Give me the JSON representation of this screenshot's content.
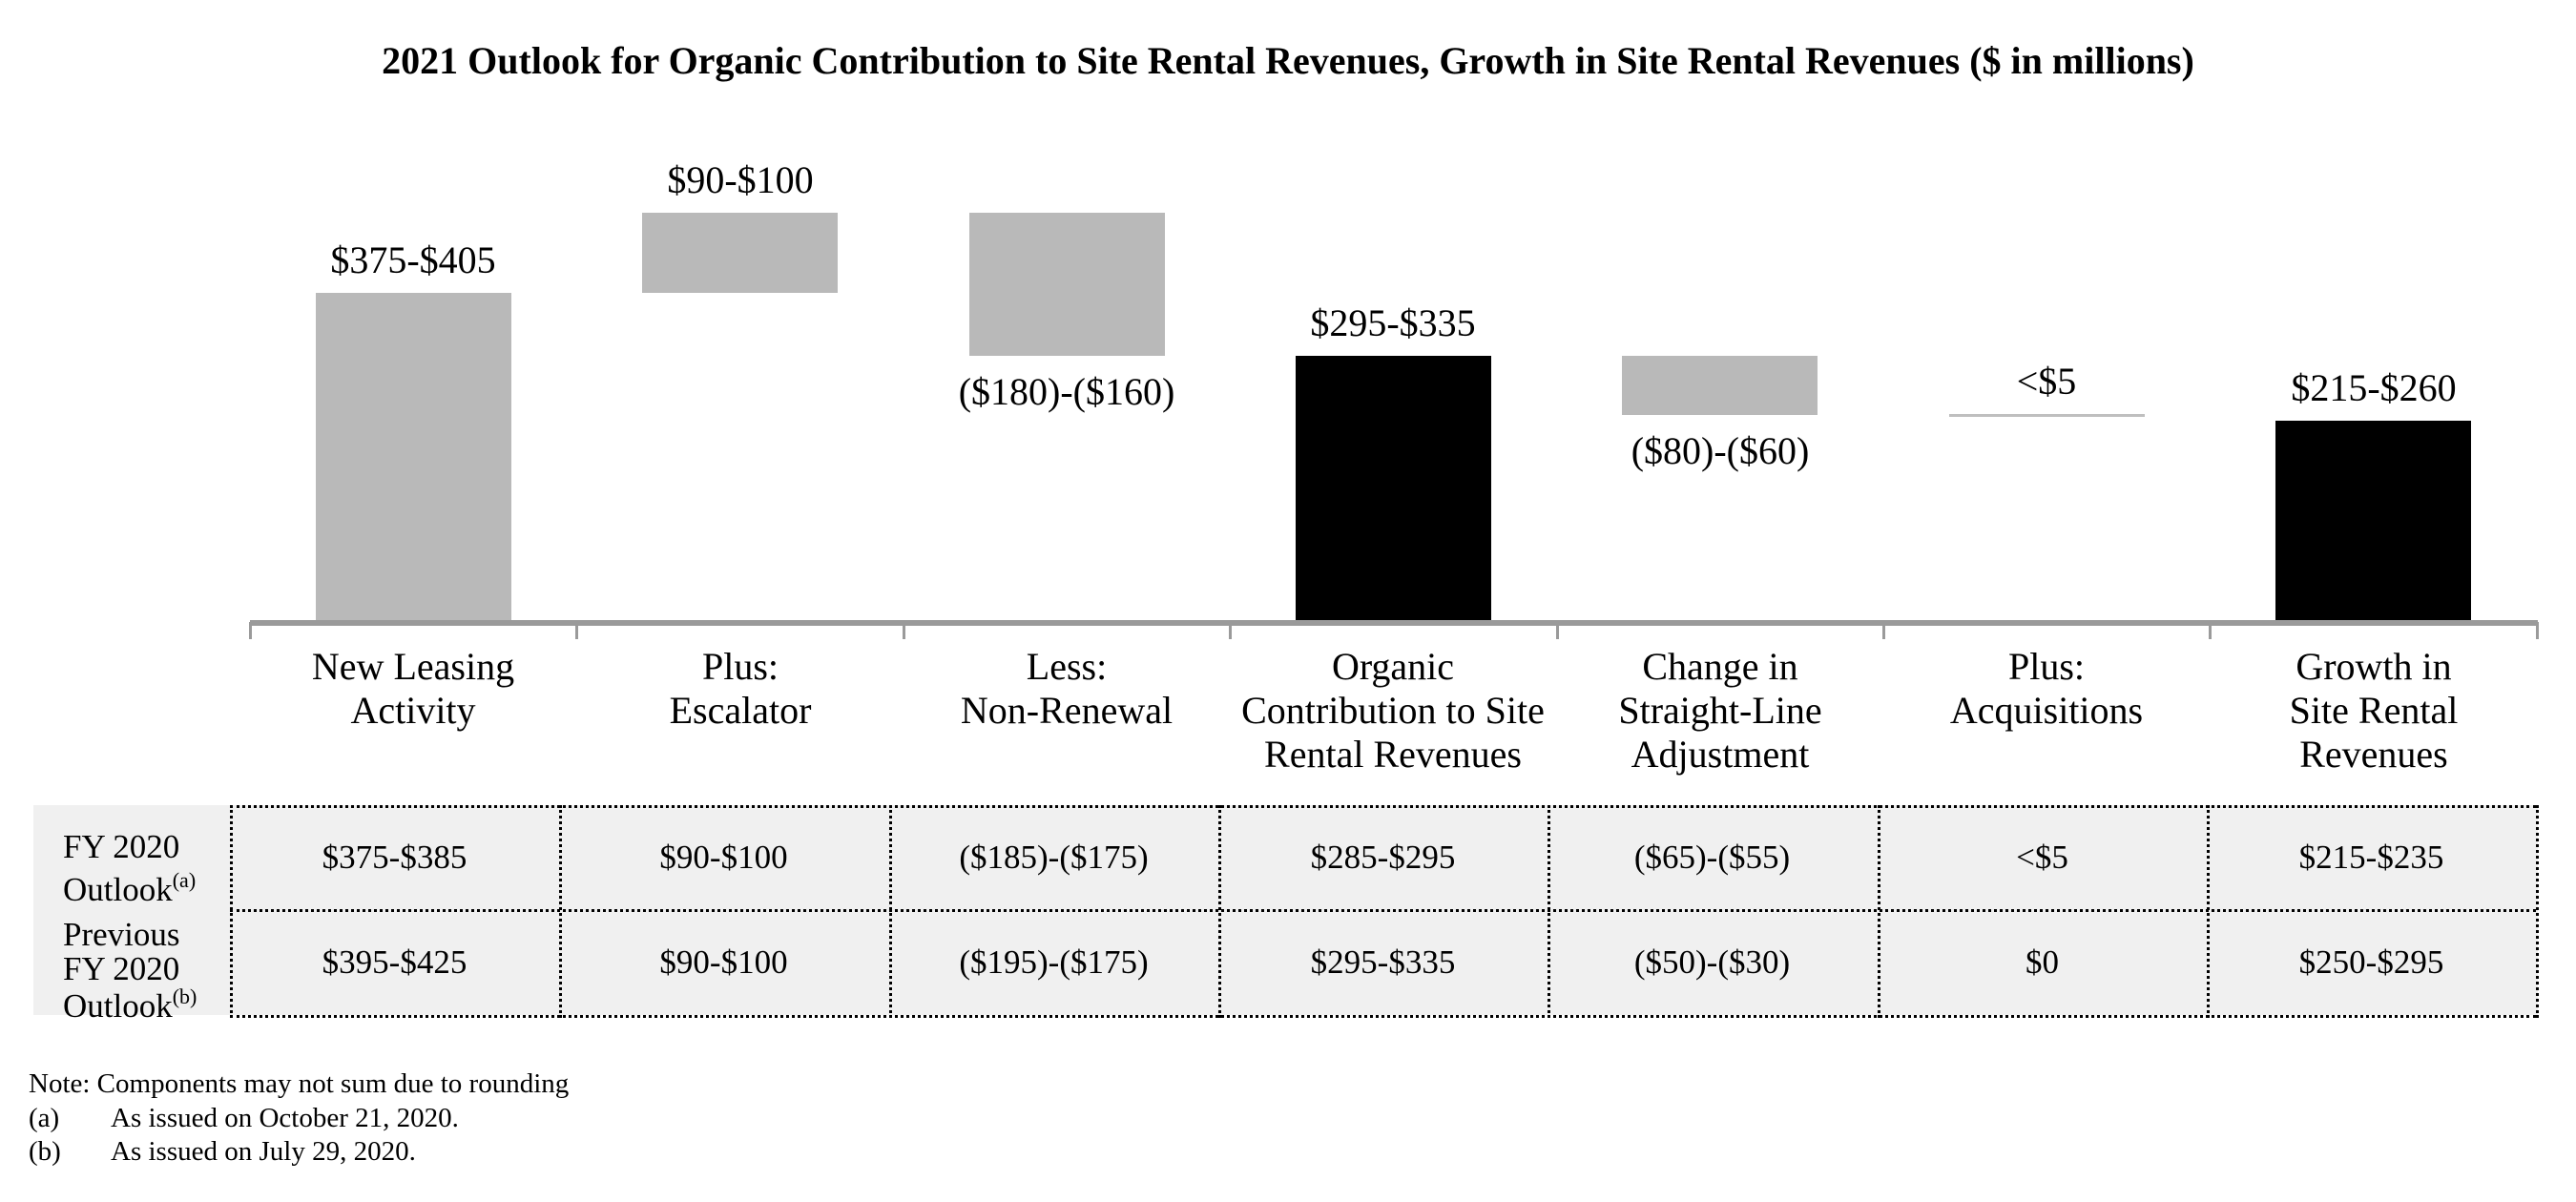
{
  "title": "2021 Outlook for Organic Contribution to Site Rental Revenues, Growth in Site Rental Revenues ($ in millions)",
  "chart_data": {
    "type": "bar",
    "subtype": "waterfall",
    "units": "$ in millions",
    "grid": false,
    "legend": false,
    "axis_value_range": [
      0,
      520
    ],
    "categories": [
      "New Leasing\nActivity",
      "Plus:\nEscalator",
      "Less:\nNon-Renewal",
      "Organic\nContribution to Site\nRental Revenues",
      "Change in\nStraight-Line\nAdjustment",
      "Plus:\nAcquisitions",
      "Growth in\nSite Rental\nRevenues"
    ],
    "bars": [
      {
        "label": "$375-$405",
        "range_low": 375,
        "range_high": 405,
        "start": 0,
        "end": 390,
        "color": "gray",
        "label_position": "above",
        "style": "bar"
      },
      {
        "label": "$90-$100",
        "range_low": 90,
        "range_high": 100,
        "start": 390,
        "end": 485,
        "color": "gray",
        "label_position": "above",
        "style": "bar"
      },
      {
        "label": "($180)-($160)",
        "range_low": -180,
        "range_high": -160,
        "start": 485,
        "end": 315,
        "color": "gray",
        "label_position": "below",
        "style": "bar"
      },
      {
        "label": "$295-$335",
        "range_low": 295,
        "range_high": 335,
        "start": 0,
        "end": 315,
        "color": "black",
        "label_position": "above",
        "style": "bar"
      },
      {
        "label": "($80)-($60)",
        "range_low": -80,
        "range_high": -60,
        "start": 315,
        "end": 245,
        "color": "gray",
        "label_position": "below",
        "style": "bar"
      },
      {
        "label": "<$5",
        "range_low": 0,
        "range_high": 5,
        "start": 245,
        "end": 246,
        "color": "gray",
        "label_position": "above",
        "style": "line"
      },
      {
        "label": "$215-$260",
        "range_low": 215,
        "range_high": 260,
        "start": 0,
        "end": 237,
        "color": "black",
        "label_position": "above",
        "style": "bar"
      }
    ],
    "colors": {
      "gray_bar": "#b9b9b9",
      "black_bar": "#000000",
      "line_bar": "#bfbfbf",
      "axis": "#9a9a9a"
    }
  },
  "table": {
    "row_labels": [
      {
        "lines": [
          "FY 2020",
          "Outlook"
        ],
        "sup": "(a)"
      },
      {
        "lines": [
          "Previous",
          "FY 2020",
          "Outlook"
        ],
        "sup": "(b)"
      }
    ],
    "rows": [
      {
        "values": [
          "$375-$385",
          "$90-$100",
          "($185)-($175)",
          "$285-$295",
          "($65)-($55)",
          "<$5",
          "$215-$235"
        ]
      },
      {
        "values": [
          "$395-$425",
          "$90-$100",
          "($195)-($175)",
          "$295-$335",
          "($50)-($30)",
          "$0",
          "$250-$295"
        ]
      }
    ]
  },
  "footnotes": {
    "note": "Note: Components may not sum due to rounding",
    "items": [
      {
        "marker": "(a)",
        "text": "As issued on October 21, 2020."
      },
      {
        "marker": "(b)",
        "text": "As issued on July 29, 2020."
      }
    ]
  }
}
